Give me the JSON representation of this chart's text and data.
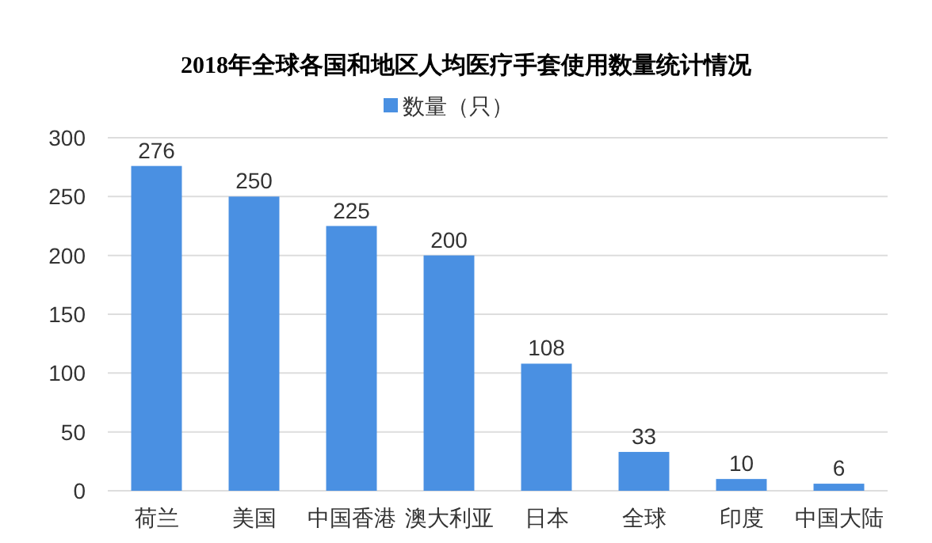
{
  "chart_data": {
    "type": "bar",
    "title": "2018年全球各国和地区人均医疗手套使用数量统计情况",
    "categories": [
      "荷兰",
      "美国",
      "中国香港",
      "澳大利亚",
      "日本",
      "全球",
      "印度",
      "中国大陆"
    ],
    "series": [
      {
        "name": "数量（只）",
        "color": "#4a90e2",
        "values": [
          276,
          250,
          225,
          200,
          108,
          33,
          10,
          6
        ]
      }
    ],
    "ylim": [
      0,
      300
    ],
    "yticks": [
      0,
      50,
      100,
      150,
      200,
      250,
      300
    ],
    "grid": "y",
    "legend": "top",
    "data_labels": true
  }
}
